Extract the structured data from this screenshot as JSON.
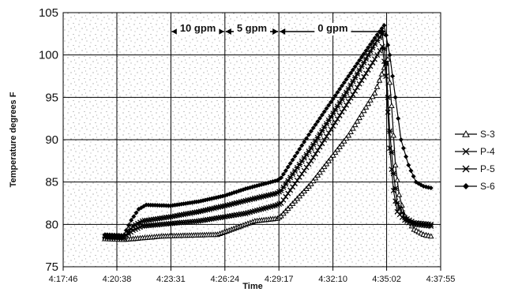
{
  "chart_data": {
    "type": "line",
    "title": "",
    "xlabel": "Time",
    "ylabel": "Temperature degrees F",
    "ylim": [
      75,
      105
    ],
    "yticks": [
      "75",
      "80",
      "85",
      "90",
      "95",
      "100",
      "105"
    ],
    "xlim_minutes": [
      17.767,
      37.917
    ],
    "xticks": [
      {
        "label": "4:17:46",
        "min": 17.767
      },
      {
        "label": "4:20:38",
        "min": 20.633
      },
      {
        "label": "4:23:31",
        "min": 23.517
      },
      {
        "label": "4:26:24",
        "min": 26.4
      },
      {
        "label": "4:29:17",
        "min": 29.283
      },
      {
        "label": "4:32:10",
        "min": 32.167
      },
      {
        "label": "4:35:02",
        "min": 35.033
      },
      {
        "label": "4:37:55",
        "min": 37.917
      }
    ],
    "grid": true,
    "legend_position": "right",
    "phases": [
      {
        "label": "10 gpm",
        "start": 23.517,
        "end": 26.4
      },
      {
        "label": "5 gpm",
        "start": 26.4,
        "end": 29.283
      },
      {
        "label": "0 gpm",
        "start": 29.283,
        "end": 35.033
      }
    ],
    "series": [
      {
        "name": "S-3",
        "marker": "triangle-open",
        "points": [
          [
            20.0,
            78.3
          ],
          [
            21.0,
            78.2
          ],
          [
            22.0,
            78.4
          ],
          [
            23.0,
            78.6
          ],
          [
            24.5,
            78.7
          ],
          [
            26.0,
            78.8
          ],
          [
            27.0,
            79.6
          ],
          [
            28.0,
            80.4
          ],
          [
            29.2,
            80.7
          ],
          [
            29.4,
            81.0
          ],
          [
            31.0,
            84.8
          ],
          [
            33.0,
            90.5
          ],
          [
            34.4,
            95.5
          ],
          [
            34.9,
            98.5
          ],
          [
            35.1,
            99.5
          ],
          [
            35.3,
            94.0
          ],
          [
            35.5,
            87.0
          ],
          [
            35.7,
            83.5
          ],
          [
            36.0,
            81.0
          ],
          [
            36.5,
            79.4
          ],
          [
            37.0,
            78.8
          ],
          [
            37.4,
            78.6
          ]
        ]
      },
      {
        "name": "P-4",
        "marker": "x",
        "points": [
          [
            20.0,
            78.6
          ],
          [
            21.0,
            78.5
          ],
          [
            21.5,
            79.3
          ],
          [
            22.0,
            79.8
          ],
          [
            23.5,
            80.1
          ],
          [
            25.0,
            80.4
          ],
          [
            26.4,
            80.9
          ],
          [
            27.5,
            81.3
          ],
          [
            29.2,
            82.3
          ],
          [
            29.4,
            82.5
          ],
          [
            31.0,
            87.5
          ],
          [
            33.0,
            94.5
          ],
          [
            34.4,
            99.5
          ],
          [
            34.8,
            101.0
          ],
          [
            35.0,
            97.5
          ],
          [
            35.2,
            89.0
          ],
          [
            35.4,
            84.0
          ],
          [
            35.6,
            81.5
          ],
          [
            36.0,
            80.5
          ],
          [
            36.5,
            80.0
          ],
          [
            37.4,
            79.8
          ]
        ]
      },
      {
        "name": "P-5",
        "marker": "asterisk",
        "points": [
          [
            20.0,
            78.5
          ],
          [
            21.0,
            78.4
          ],
          [
            21.5,
            79.8
          ],
          [
            22.0,
            80.4
          ],
          [
            23.5,
            80.9
          ],
          [
            25.0,
            81.5
          ],
          [
            26.4,
            82.2
          ],
          [
            27.5,
            82.8
          ],
          [
            29.2,
            83.7
          ],
          [
            29.4,
            84.0
          ],
          [
            31.0,
            89.0
          ],
          [
            33.0,
            96.0
          ],
          [
            34.4,
            101.3
          ],
          [
            34.8,
            102.5
          ],
          [
            35.0,
            99.0
          ],
          [
            35.2,
            91.0
          ],
          [
            35.4,
            86.0
          ],
          [
            35.6,
            82.5
          ],
          [
            36.0,
            80.8
          ],
          [
            36.5,
            80.2
          ],
          [
            37.4,
            80.0
          ]
        ]
      },
      {
        "name": "S-6",
        "marker": "diamond-filled",
        "points": [
          [
            20.0,
            78.8
          ],
          [
            21.0,
            78.7
          ],
          [
            21.4,
            80.5
          ],
          [
            21.8,
            81.8
          ],
          [
            22.2,
            82.3
          ],
          [
            23.5,
            82.2
          ],
          [
            25.0,
            82.7
          ],
          [
            26.4,
            83.4
          ],
          [
            27.5,
            84.2
          ],
          [
            29.2,
            85.2
          ],
          [
            29.4,
            85.5
          ],
          [
            31.0,
            91.0
          ],
          [
            33.0,
            97.5
          ],
          [
            34.4,
            102.0
          ],
          [
            34.9,
            103.5
          ],
          [
            35.2,
            100.0
          ],
          [
            35.5,
            95.0
          ],
          [
            35.8,
            90.0
          ],
          [
            36.2,
            87.0
          ],
          [
            36.6,
            85.0
          ],
          [
            37.0,
            84.5
          ],
          [
            37.4,
            84.3
          ]
        ]
      }
    ]
  }
}
